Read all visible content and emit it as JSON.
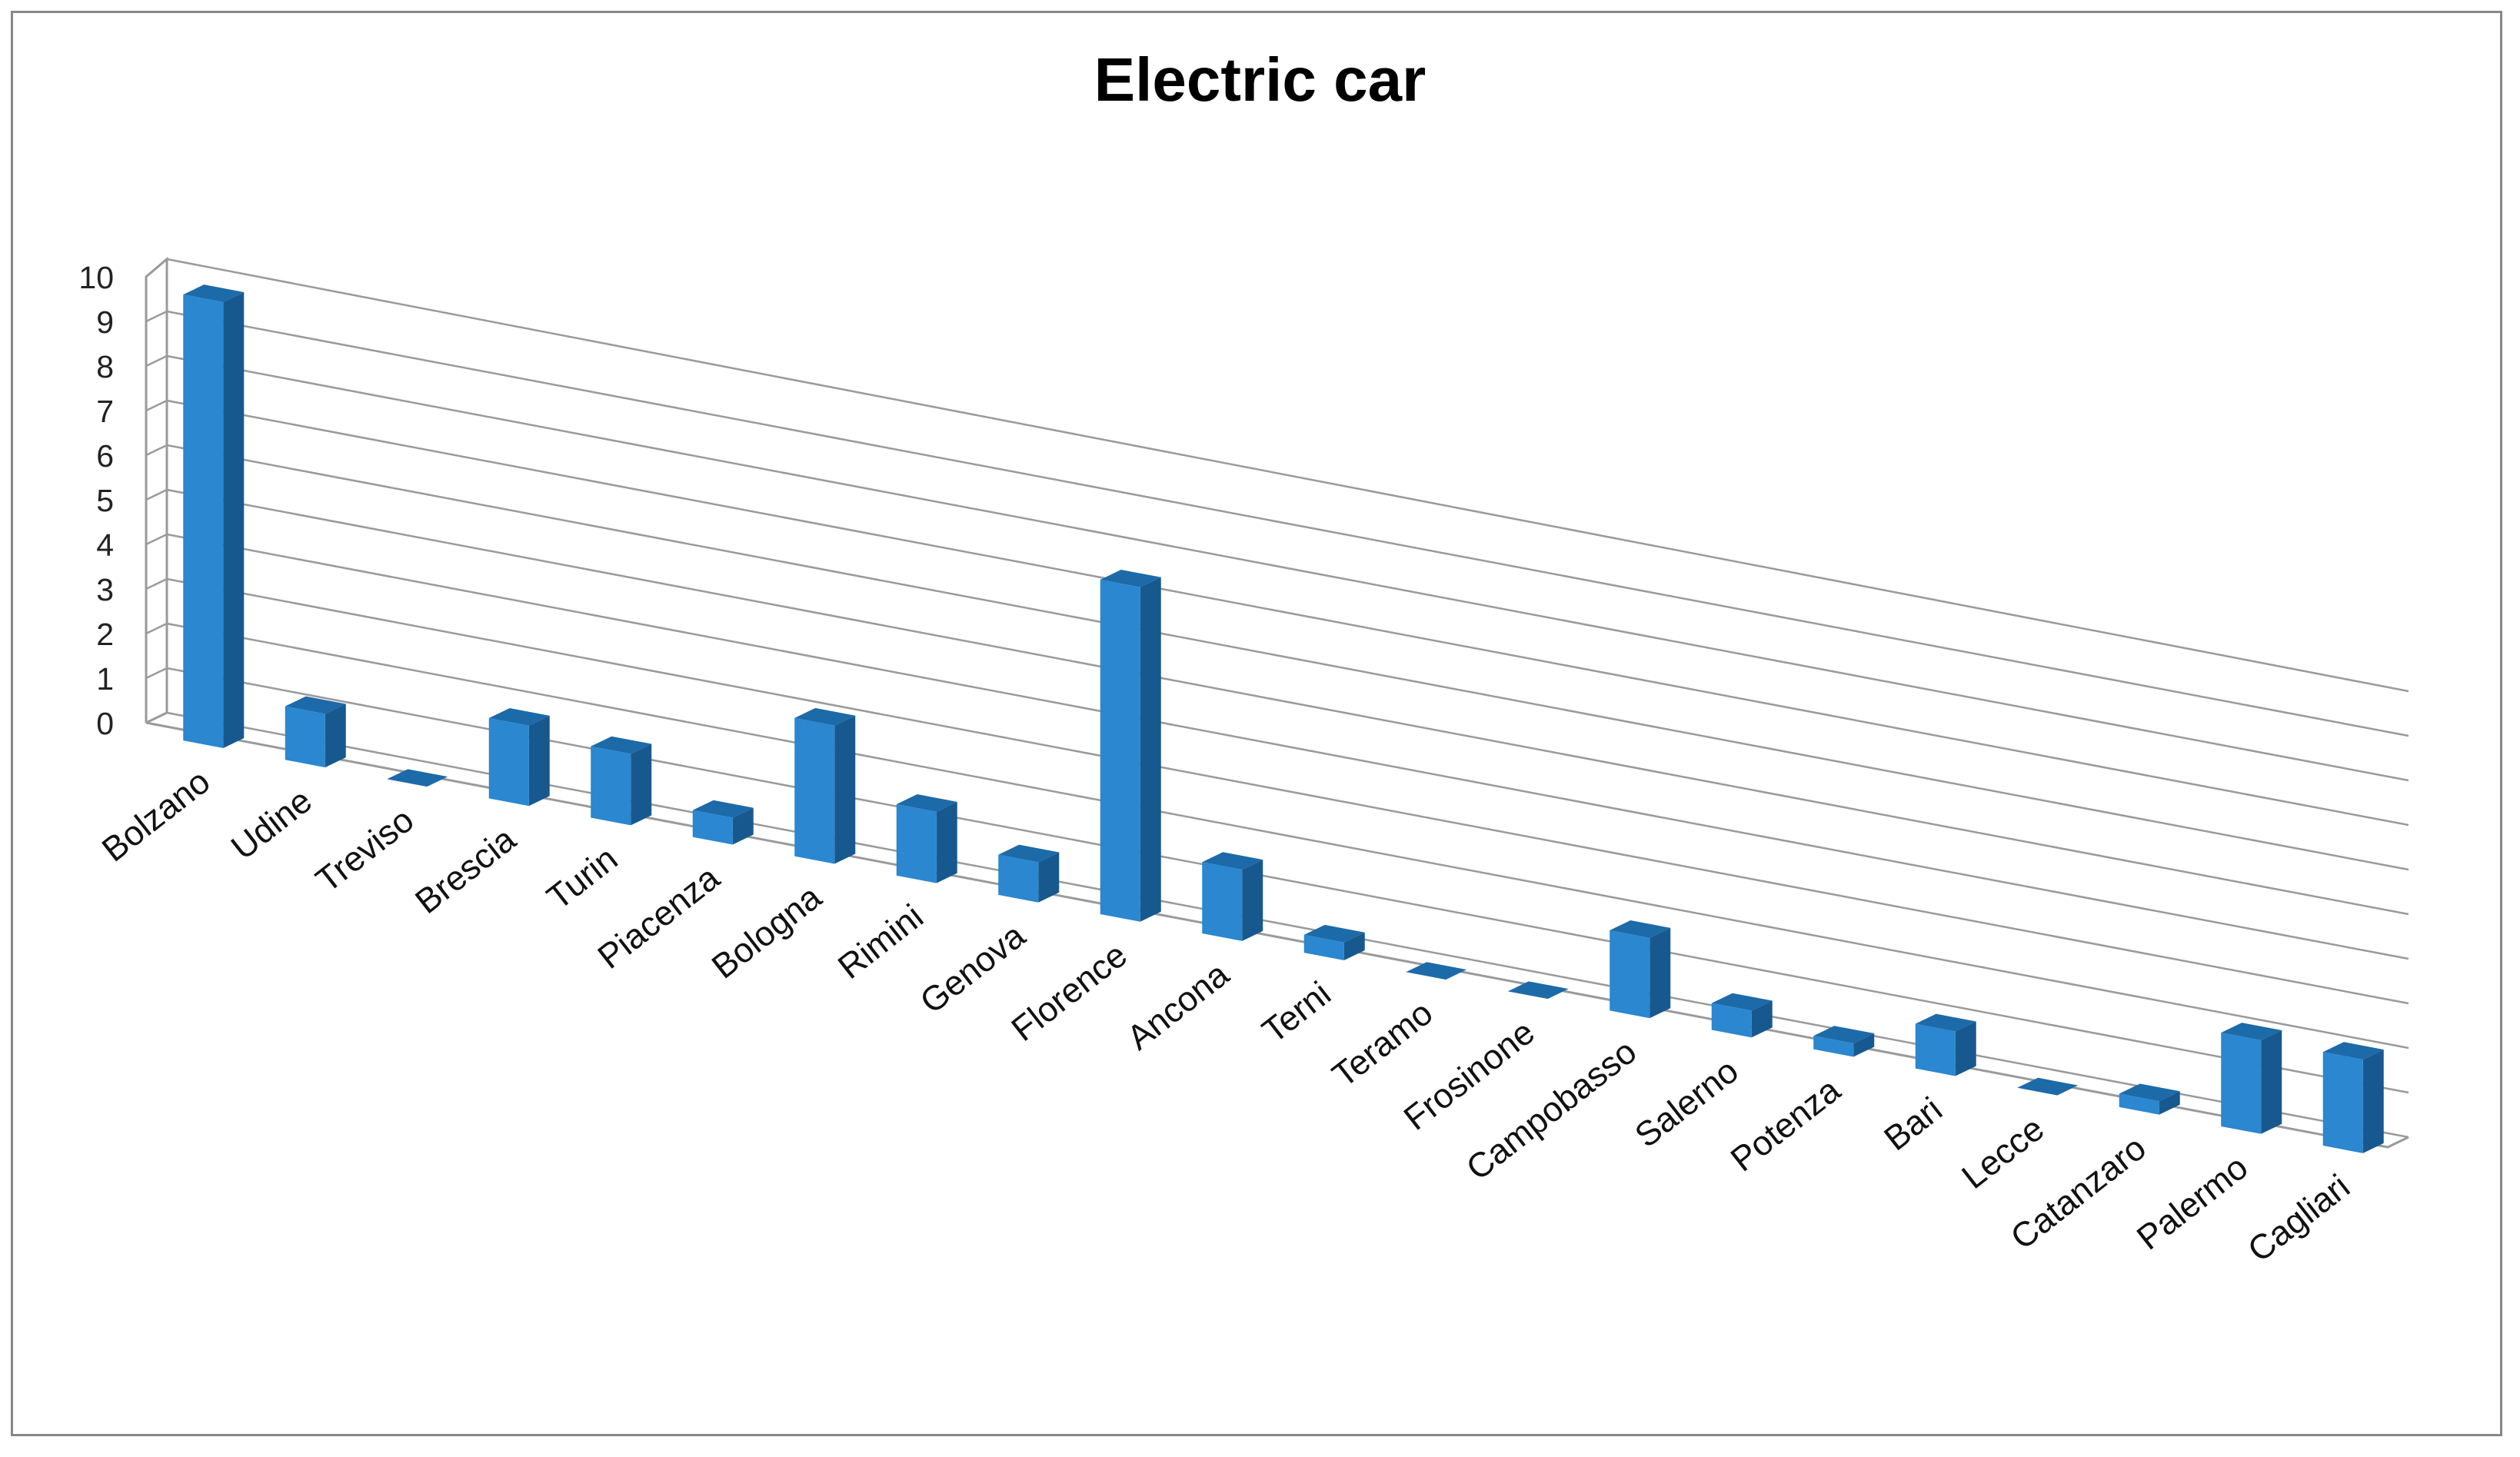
{
  "chart_data": {
    "type": "bar",
    "title": "Electric car",
    "xlabel": "",
    "ylabel": "",
    "ylim": [
      0,
      10
    ],
    "yticks": [
      0,
      1,
      2,
      3,
      4,
      5,
      6,
      7,
      8,
      9,
      10
    ],
    "categories": [
      "Bolzano",
      "Udine",
      "Treviso",
      "Brescia",
      "Turin",
      "Piacenza",
      "Bologna",
      "Rimini",
      "Genova",
      "Florence",
      "Ancona",
      "Terni",
      "Teramo",
      "Frosinone",
      "Campobasso",
      "Salerno",
      "Potenza",
      "Bari",
      "Lecce",
      "Catanzaro",
      "Palermo",
      "Cagliari"
    ],
    "values": [
      10,
      1.2,
      0,
      1.8,
      1.6,
      0.6,
      3.1,
      1.6,
      0.9,
      7.5,
      1.6,
      0.4,
      0,
      0,
      1.8,
      0.6,
      0.3,
      1.0,
      0,
      0.3,
      2.1,
      2.1
    ],
    "grid": true,
    "legend": "none",
    "colors": {
      "bar_front": "#2a87d0",
      "bar_side": "#17598f",
      "bar_top": "#1d6aa8",
      "grid": "#9a9a9a"
    }
  }
}
